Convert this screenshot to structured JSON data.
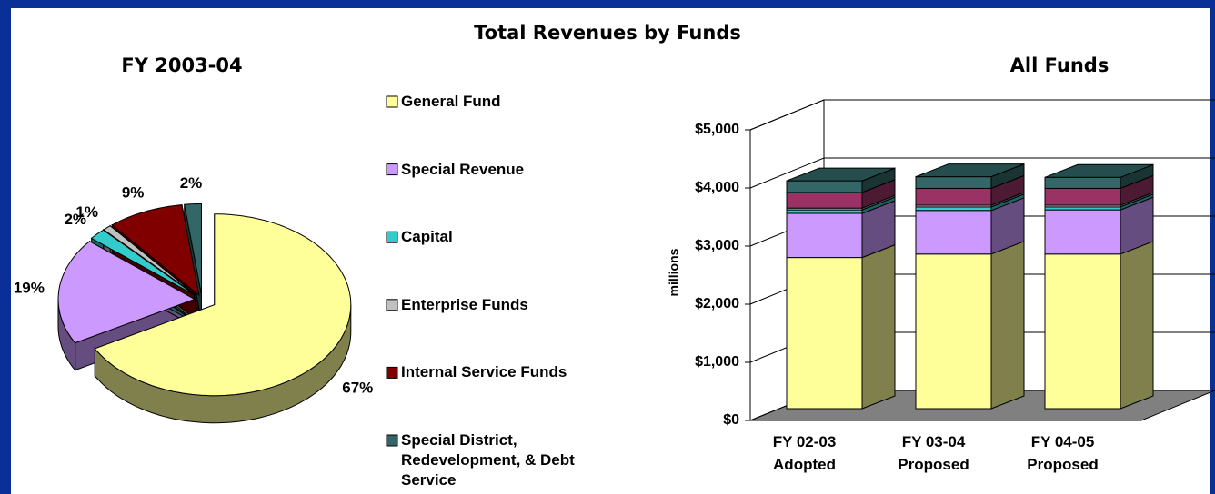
{
  "title": "Total Revenues by Funds",
  "chart_data": [
    {
      "type": "pie",
      "title": "FY 2003-04",
      "categories": [
        "General Fund",
        "Special Revenue",
        "Capital",
        "Enterprise Funds",
        "Internal Service  Funds",
        "Special District,\nRedevelopment, & Debt\nService"
      ],
      "values": [
        67,
        19,
        2,
        1,
        9,
        2
      ],
      "value_labels": [
        "67%",
        "19%",
        "2%",
        "1%",
        "9%",
        "2%"
      ],
      "colors": [
        "#ffff99",
        "#cc99ff",
        "#33cccc",
        "#c0c0c0",
        "#800000",
        "#336666"
      ],
      "legend": "right"
    },
    {
      "type": "bar3d_stacked",
      "title": "All Funds",
      "y_label": "millions",
      "categories": [
        "FY 02-03\nAdopted",
        "FY 03-04\nProposed",
        "FY 04-05\nProposed"
      ],
      "series": [
        {
          "name": "General Fund",
          "color": "#ffff99",
          "values": [
            2600,
            2660,
            2660
          ]
        },
        {
          "name": "Special Revenue",
          "color": "#cc99ff",
          "values": [
            760,
            750,
            760
          ]
        },
        {
          "name": "Capital",
          "color": "#33cccc",
          "values": [
            60,
            60,
            50
          ]
        },
        {
          "name": "Enterprise Funds",
          "color": "#c0c0c0",
          "values": [
            30,
            30,
            30
          ]
        },
        {
          "name": "Internal Service  Funds",
          "color": "#993366",
          "values": [
            270,
            290,
            290
          ]
        },
        {
          "name": "Special District,\nRedevelopment, & Debt\nService",
          "color": "#336666",
          "values": [
            200,
            200,
            190
          ]
        }
      ],
      "ylim": [
        0,
        5000
      ],
      "yticks": [
        {
          "value": 0,
          "label": "$0"
        },
        {
          "value": 1000,
          "label": "$1,000"
        },
        {
          "value": 2000,
          "label": "$2,000"
        },
        {
          "value": 3000,
          "label": "$3,000"
        },
        {
          "value": 4000,
          "label": "$4,000"
        },
        {
          "value": 5000,
          "label": "$5,000"
        }
      ],
      "grid": true
    }
  ]
}
